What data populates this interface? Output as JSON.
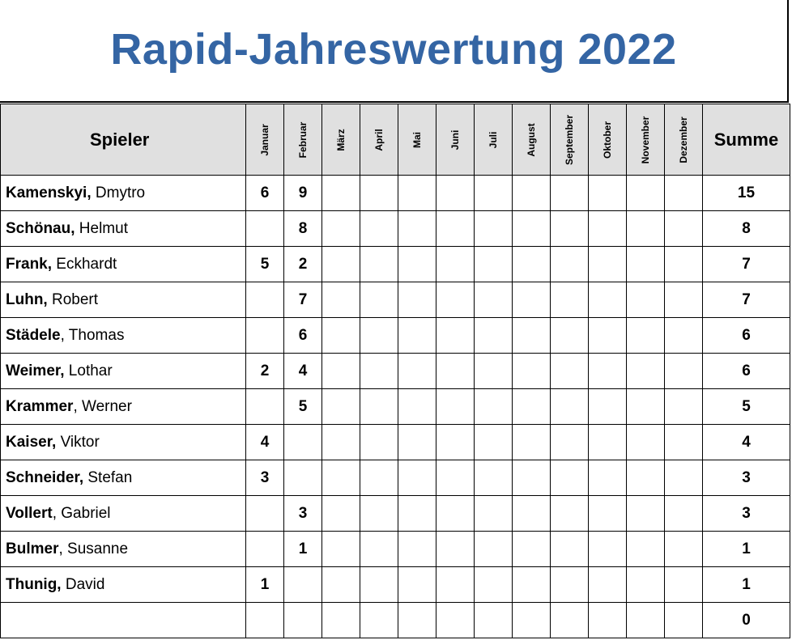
{
  "title": "Rapid-Jahreswertung 2022",
  "header": {
    "player": "Spieler",
    "months": [
      "Januar",
      "Februar",
      "März",
      "April",
      "Mai",
      "Juni",
      "Juli",
      "August",
      "September",
      "Oktober",
      "November",
      "Dezember"
    ],
    "sum": "Summe"
  },
  "rows": [
    {
      "last": "Kamenskyi,",
      "first": " Dmytro",
      "scores": [
        "6",
        "9",
        "",
        "",
        "",
        "",
        "",
        "",
        "",
        "",
        "",
        ""
      ],
      "sum": "15"
    },
    {
      "last": "Schönau,",
      "first": " Helmut",
      "scores": [
        "",
        "8",
        "",
        "",
        "",
        "",
        "",
        "",
        "",
        "",
        "",
        ""
      ],
      "sum": "8"
    },
    {
      "last": "Frank,",
      "first": " Eckhardt",
      "scores": [
        "5",
        "2",
        "",
        "",
        "",
        "",
        "",
        "",
        "",
        "",
        "",
        ""
      ],
      "sum": "7"
    },
    {
      "last": "Luhn,",
      "first": " Robert",
      "scores": [
        "",
        "7",
        "",
        "",
        "",
        "",
        "",
        "",
        "",
        "",
        "",
        ""
      ],
      "sum": "7"
    },
    {
      "last": "Städele",
      "first": ", Thomas",
      "scores": [
        "",
        "6",
        "",
        "",
        "",
        "",
        "",
        "",
        "",
        "",
        "",
        ""
      ],
      "sum": "6"
    },
    {
      "last": "Weimer,",
      "first": " Lothar",
      "scores": [
        "2",
        "4",
        "",
        "",
        "",
        "",
        "",
        "",
        "",
        "",
        "",
        ""
      ],
      "sum": "6"
    },
    {
      "last": "Krammer",
      "first": ", Werner",
      "scores": [
        "",
        "5",
        "",
        "",
        "",
        "",
        "",
        "",
        "",
        "",
        "",
        ""
      ],
      "sum": "5"
    },
    {
      "last": "Kaiser,",
      "first": " Viktor",
      "scores": [
        "4",
        "",
        "",
        "",
        "",
        "",
        "",
        "",
        "",
        "",
        "",
        ""
      ],
      "sum": "4"
    },
    {
      "last": "Schneider,",
      "first": " Stefan",
      "scores": [
        "3",
        "",
        "",
        "",
        "",
        "",
        "",
        "",
        "",
        "",
        "",
        ""
      ],
      "sum": "3"
    },
    {
      "last": "Vollert",
      "first": ", Gabriel",
      "scores": [
        "",
        "3",
        "",
        "",
        "",
        "",
        "",
        "",
        "",
        "",
        "",
        ""
      ],
      "sum": "3"
    },
    {
      "last": "Bulmer",
      "first": ", Susanne",
      "scores": [
        "",
        "1",
        "",
        "",
        "",
        "",
        "",
        "",
        "",
        "",
        "",
        ""
      ],
      "sum": "1"
    },
    {
      "last": "Thunig,",
      "first": " David",
      "scores": [
        "1",
        "",
        "",
        "",
        "",
        "",
        "",
        "",
        "",
        "",
        "",
        ""
      ],
      "sum": "1"
    },
    {
      "last": "",
      "first": "",
      "scores": [
        "",
        "",
        "",
        "",
        "",
        "",
        "",
        "",
        "",
        "",
        "",
        ""
      ],
      "sum": "0"
    }
  ],
  "colors": {
    "title": "#3465a4",
    "header_bg": "#e0e0e0"
  }
}
